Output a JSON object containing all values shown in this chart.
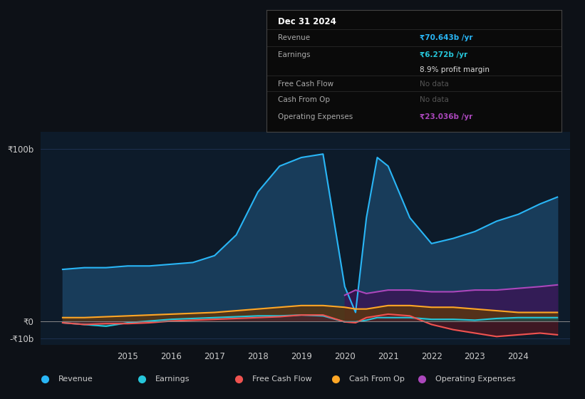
{
  "bg_color": "#0d1117",
  "plot_bg_color": "#0d1b2a",
  "grid_color": "#1e3050",
  "years_x": [
    2013.5,
    2014.0,
    2014.5,
    2015.0,
    2015.5,
    2016.0,
    2016.5,
    2017.0,
    2017.5,
    2018.0,
    2018.5,
    2019.0,
    2019.5,
    2020.0,
    2020.25,
    2020.5,
    2020.75,
    2021.0,
    2021.5,
    2022.0,
    2022.5,
    2023.0,
    2023.5,
    2024.0,
    2024.5,
    2024.9
  ],
  "revenue": [
    30,
    31,
    31,
    32,
    32,
    33,
    34,
    38,
    50,
    75,
    90,
    95,
    97,
    20,
    5,
    60,
    95,
    90,
    60,
    45,
    48,
    52,
    58,
    62,
    68,
    72
  ],
  "earnings": [
    -1,
    -2,
    -3,
    -1,
    0,
    1,
    1.5,
    2,
    2.5,
    3,
    3,
    3.5,
    3,
    -0.5,
    -0.5,
    0.5,
    2,
    2,
    2,
    1,
    1,
    0.5,
    1.5,
    2,
    2,
    2
  ],
  "free_cash_flow": [
    -1,
    -2,
    -1.5,
    -1.5,
    -1,
    0,
    0.5,
    1,
    1.5,
    2,
    2.5,
    3.5,
    3.5,
    -0.5,
    -1,
    2,
    3,
    4,
    3,
    -2,
    -5,
    -7,
    -9,
    -8,
    -7,
    -8
  ],
  "cash_from_op": [
    2,
    2,
    2.5,
    3,
    3.5,
    4,
    4.5,
    5,
    6,
    7,
    8,
    9,
    9,
    8,
    7,
    7,
    8,
    9,
    9,
    8,
    8,
    7,
    6,
    5,
    5,
    5
  ],
  "op_expenses": [
    0,
    0,
    0,
    0,
    0,
    0,
    0,
    0,
    0,
    0,
    0,
    0,
    0,
    15,
    18,
    16,
    17,
    18,
    18,
    17,
    17,
    18,
    18,
    19,
    20,
    21
  ],
  "revenue_color": "#29b6f6",
  "earnings_color": "#26c6da",
  "fcf_color": "#ef5350",
  "cfop_color": "#ffa726",
  "opex_color": "#ab47bc",
  "revenue_fill": "#1a4060",
  "earnings_fill": "#1a5550",
  "fcf_fill": "#5a1520",
  "cfop_fill": "#5a3510",
  "opex_fill": "#3a1555",
  "ylim_min": -14,
  "ylim_max": 110,
  "xlabel_ticks": [
    2015,
    2016,
    2017,
    2018,
    2019,
    2020,
    2021,
    2022,
    2023,
    2024
  ],
  "legend_items": [
    {
      "label": "Revenue",
      "color": "#29b6f6"
    },
    {
      "label": "Earnings",
      "color": "#26c6da"
    },
    {
      "label": "Free Cash Flow",
      "color": "#ef5350"
    },
    {
      "label": "Cash From Op",
      "color": "#ffa726"
    },
    {
      "label": "Operating Expenses",
      "color": "#ab47bc"
    }
  ],
  "tooltip_title": "Dec 31 2024",
  "tooltip_rows": [
    {
      "label": "Revenue",
      "value": "₹70.643b /yr",
      "value_color": "#29b6f6",
      "show_divider": true
    },
    {
      "label": "Earnings",
      "value": "₹6.272b /yr",
      "value_color": "#26c6da",
      "show_divider": false
    },
    {
      "label": "",
      "value": "8.9% profit margin",
      "value_color": "#dddddd",
      "show_divider": true
    },
    {
      "label": "Free Cash Flow",
      "value": "No data",
      "value_color": "#555555",
      "show_divider": true
    },
    {
      "label": "Cash From Op",
      "value": "No data",
      "value_color": "#555555",
      "show_divider": true
    },
    {
      "label": "Operating Expenses",
      "value": "₹23.036b /yr",
      "value_color": "#ab47bc",
      "show_divider": false
    }
  ]
}
